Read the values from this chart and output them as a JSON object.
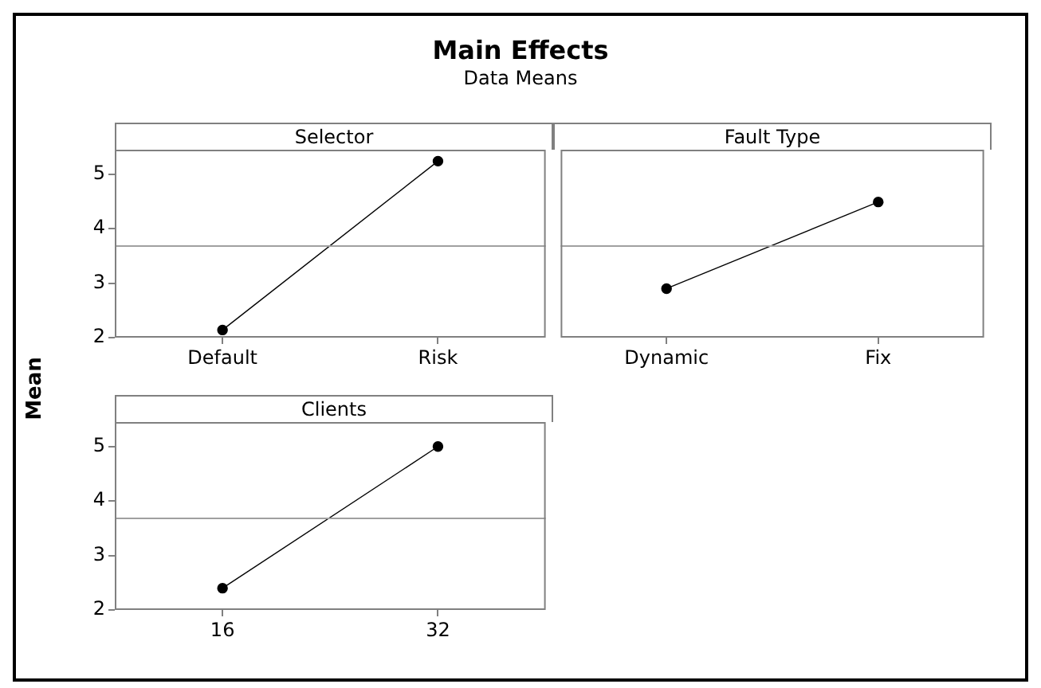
{
  "chart_data": [
    {
      "type": "line",
      "title": "Main Effects",
      "subtitle": "Data Means",
      "ylabel": "Mean",
      "xlabel": "Selector",
      "categories": [
        "Default",
        "Risk"
      ],
      "values": [
        2.14,
        5.24
      ],
      "color": "#000000",
      "marker": "circle",
      "ylim": [
        2,
        5.45
      ],
      "yticks": [
        2,
        3,
        4,
        5
      ],
      "ref_lines": [
        {
          "axis": "y",
          "value": 3.68,
          "color": "#a0a0a0"
        }
      ]
    },
    {
      "type": "line",
      "xlabel": "Fault Type",
      "categories": [
        "Dynamic",
        "Fix"
      ],
      "values": [
        2.9,
        4.49
      ],
      "color": "#000000",
      "marker": "circle",
      "ylim": [
        2,
        5.45
      ],
      "yticks": [
        2,
        3,
        4,
        5
      ],
      "tick_labels": "x",
      "ref_lines": [
        {
          "axis": "y",
          "value": 3.68,
          "color": "#a0a0a0"
        }
      ]
    },
    {
      "type": "line",
      "xlabel": "Clients",
      "categories": [
        "16",
        "32"
      ],
      "values": [
        2.4,
        5.0
      ],
      "color": "#000000",
      "marker": "circle",
      "ylim": [
        2,
        5.45
      ],
      "yticks": [
        2,
        3,
        4,
        5
      ],
      "ref_lines": [
        {
          "axis": "y",
          "value": 3.68,
          "color": "#a0a0a0"
        }
      ]
    }
  ]
}
